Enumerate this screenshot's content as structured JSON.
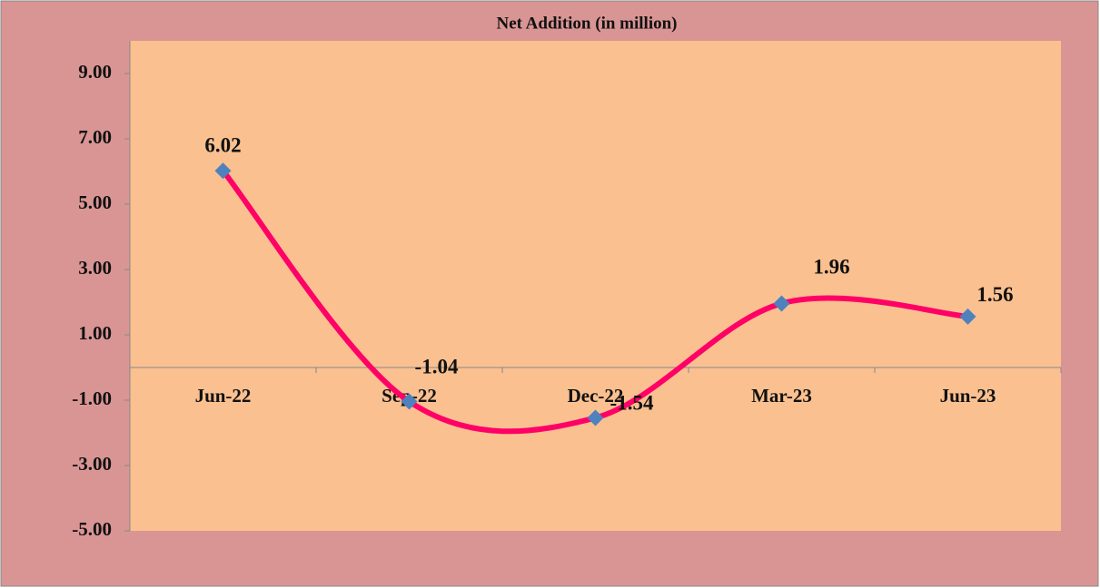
{
  "chart_data": {
    "type": "line",
    "title": "Net Addition (in million)",
    "categories": [
      "Jun-22",
      "Sep-22",
      "Dec-22",
      "Mar-23",
      "Jun-23"
    ],
    "series": [
      {
        "name": "Net Addition",
        "color": "#ff0066",
        "marker_color": "#4f81bd",
        "values": [
          6.02,
          -1.04,
          -1.54,
          1.96,
          1.56
        ]
      }
    ],
    "ylim": [
      -5,
      10
    ],
    "yticks": [
      {
        "value": -5,
        "label": "-5.00"
      },
      {
        "value": -3,
        "label": "-3.00"
      },
      {
        "value": -1,
        "label": "-1.00"
      },
      {
        "value": 1,
        "label": "1.00"
      },
      {
        "value": 3,
        "label": "3.00"
      },
      {
        "value": 5,
        "label": "5.00"
      },
      {
        "value": 7,
        "label": "7.00"
      },
      {
        "value": 9,
        "label": "9.00"
      }
    ],
    "smooth": true
  }
}
